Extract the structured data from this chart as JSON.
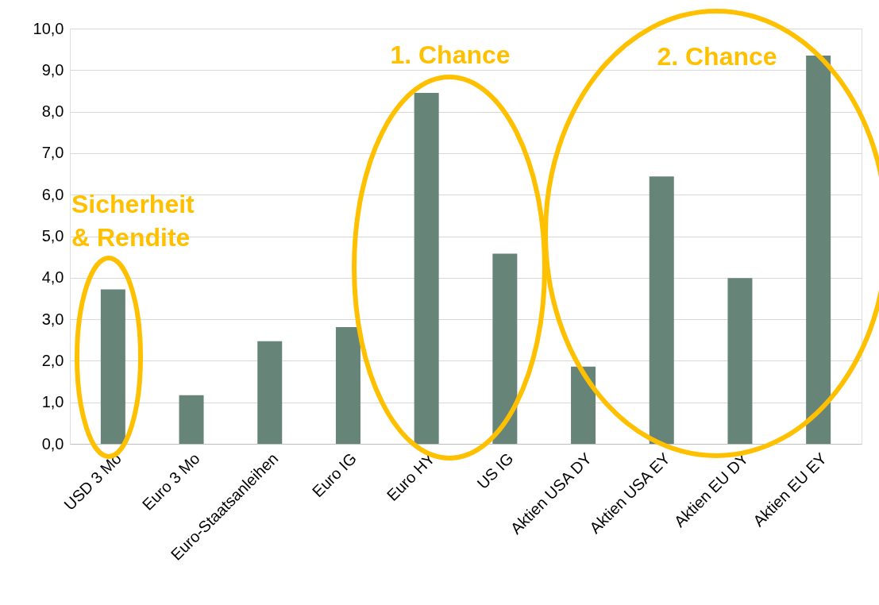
{
  "chart_data": {
    "type": "bar",
    "categories": [
      "USD 3 Mo",
      "Euro 3 Mo",
      "Euro-Staatsanleihen",
      "Euro IG",
      "Euro HY",
      "US IG",
      "Aktien USA DY",
      "Aktien USA EY",
      "Aktien EU DY",
      "Aktien EU EY"
    ],
    "values": [
      3.72,
      1.17,
      2.47,
      2.81,
      8.45,
      4.58,
      1.86,
      6.44,
      3.99,
      9.35
    ],
    "color": "#678479",
    "ylim": [
      0,
      10
    ],
    "yticks": [
      {
        "value": 0,
        "label": "0,0"
      },
      {
        "value": 1,
        "label": "1,0"
      },
      {
        "value": 2,
        "label": "2,0"
      },
      {
        "value": 3,
        "label": "3,0"
      },
      {
        "value": 4,
        "label": "4,0"
      },
      {
        "value": 5,
        "label": "5,0"
      },
      {
        "value": 6,
        "label": "6,0"
      },
      {
        "value": 7,
        "label": "7,0"
      },
      {
        "value": 8,
        "label": "8,0"
      },
      {
        "value": 9,
        "label": "9,0"
      },
      {
        "value": 10,
        "label": "10,0"
      }
    ],
    "grid": "y",
    "annotations": [
      "Sicherheit\n& Rendite",
      "1. Chance",
      "2. Chance"
    ]
  }
}
